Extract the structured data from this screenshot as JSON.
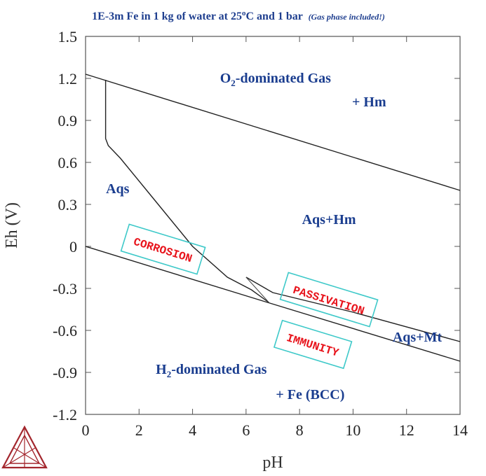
{
  "chart_data": {
    "type": "line",
    "title": "1E-3m Fe in 1 kg of water at 25°C and 1 bar",
    "title_parts": {
      "main": "1E-3m Fe in 1 kg of water at 25",
      "deg": "o",
      "rest": "C and 1 bar"
    },
    "subtitle": "(Gas phase included!)",
    "xlabel": "pH",
    "ylabel": "Eh (V)",
    "xlim": [
      0,
      14
    ],
    "ylim": [
      -1.2,
      1.5
    ],
    "xticks": [
      "0",
      "2",
      "4",
      "6",
      "8",
      "10",
      "12",
      "14"
    ],
    "yticks": [
      "1.5",
      "1.2",
      "0.9",
      "0.6",
      "0.3",
      "0",
      "-0.3",
      "-0.6",
      "-0.9",
      "-1.2"
    ],
    "xtick_values": [
      0,
      2,
      4,
      6,
      8,
      10,
      12,
      14
    ],
    "ytick_values": [
      1.5,
      1.2,
      0.9,
      0.6,
      0.3,
      0,
      -0.3,
      -0.6,
      -0.9,
      -1.2
    ],
    "grid": false,
    "series": [
      {
        "values": [
          [
            0,
            1.23
          ],
          [
            14,
            0.4
          ]
        ]
      },
      {
        "values": [
          [
            0,
            0.0
          ],
          [
            6.8,
            -0.4
          ],
          [
            14,
            -0.82
          ]
        ]
      },
      {
        "values": [
          [
            0.75,
            1.19
          ],
          [
            0.75,
            0.77
          ],
          [
            0.85,
            0.72
          ],
          [
            1.3,
            0.63
          ],
          [
            2.5,
            0.35
          ],
          [
            4.0,
            0.0
          ],
          [
            5.3,
            -0.22
          ],
          [
            6.2,
            -0.31
          ],
          [
            6.85,
            -0.4
          ]
        ]
      },
      {
        "values": [
          [
            6.0,
            -0.22
          ],
          [
            7.0,
            -0.33
          ],
          [
            10.0,
            -0.47
          ],
          [
            14,
            -0.68
          ]
        ]
      },
      {
        "values": [
          [
            6.0,
            -0.22
          ],
          [
            6.85,
            -0.4
          ]
        ]
      }
    ],
    "regions": [
      {
        "label": "O",
        "sub": "2",
        "rest": "-dominated Gas",
        "x": 7.1,
        "y": 1.17
      },
      {
        "label": "+ Hm",
        "x": 10.6,
        "y": 1.0
      },
      {
        "label": "Aqs",
        "x": 1.2,
        "y": 0.38
      },
      {
        "label": "Aqs+Hm",
        "x": 9.1,
        "y": 0.16
      },
      {
        "label": "Aqs+Mt",
        "x": 12.4,
        "y": -0.68
      },
      {
        "label": "H",
        "sub": "2",
        "rest": "-dominated Gas",
        "x": 4.7,
        "y": -0.91
      },
      {
        "label": "+ Fe (BCC)",
        "x": 8.4,
        "y": -1.09
      }
    ],
    "annotations": [
      {
        "text": "CORROSION",
        "x": 2.9,
        "y": -0.02,
        "angle": 17
      },
      {
        "text": "PASSIVATION",
        "x": 9.1,
        "y": -0.38,
        "angle": 17
      },
      {
        "text": "IMMUNITY",
        "x": 8.5,
        "y": -0.7,
        "angle": 17
      }
    ]
  },
  "colors": {
    "region_text": "#1a3d8f",
    "annotation_text": "#e8141c",
    "annotation_box": "#3ec9c9",
    "title": "#1f3f8f",
    "logo": "#a3262d"
  },
  "logo_icon": "triangle-logo-icon"
}
